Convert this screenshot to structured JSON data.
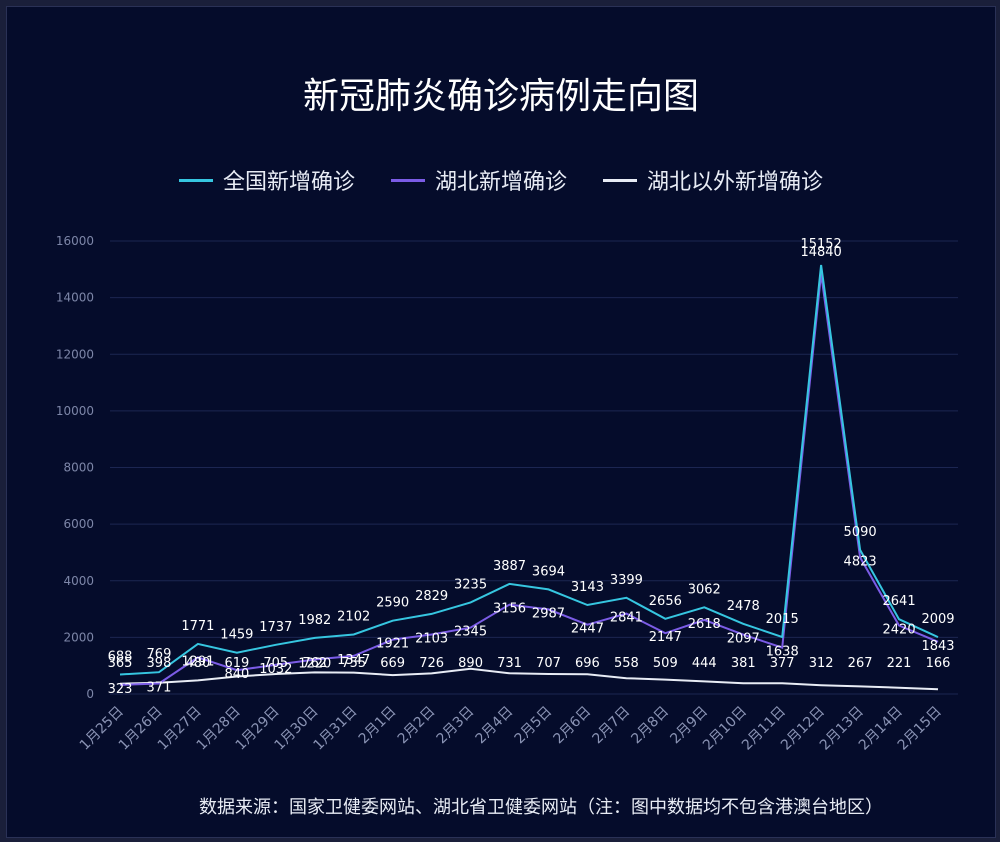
{
  "chart_data": {
    "type": "line",
    "title": "新冠肺炎确诊病例走向图",
    "categories": [
      "1月25日",
      "1月26日",
      "1月27日",
      "1月28日",
      "1月29日",
      "1月30日",
      "1月31日",
      "2月1日",
      "2月2日",
      "2月3日",
      "2月4日",
      "2月5日",
      "2月6日",
      "2月7日",
      "2月8日",
      "2月9日",
      "2月10日",
      "2月11日",
      "2月12日",
      "2月13日",
      "2月14日",
      "2月15日"
    ],
    "series": [
      {
        "name": "全国新增确诊",
        "color": "#36c6e0",
        "values": [
          688,
          769,
          1771,
          1459,
          1737,
          1982,
          2102,
          2590,
          2829,
          3235,
          3887,
          3694,
          3143,
          3399,
          2656,
          3062,
          2478,
          2015,
          15152,
          5090,
          2641,
          2009
        ]
      },
      {
        "name": "湖北新增确诊",
        "color": "#7b5ce6",
        "values": [
          323,
          371,
          1291,
          840,
          1032,
          1220,
          1347,
          1921,
          2103,
          2345,
          3156,
          2987,
          2447,
          2841,
          2147,
          2618,
          2097,
          1638,
          14840,
          4823,
          2420,
          1843
        ]
      },
      {
        "name": "湖北以外新增确诊",
        "color": "#e8ecf5",
        "values": [
          365,
          398,
          480,
          619,
          705,
          762,
          755,
          669,
          726,
          890,
          731,
          707,
          696,
          558,
          509,
          444,
          381,
          377,
          312,
          267,
          221,
          166
        ]
      }
    ],
    "ylim": [
      0,
      16000
    ],
    "yticks": [
      0,
      2000,
      4000,
      6000,
      8000,
      10000,
      12000,
      14000,
      16000
    ],
    "grid": true,
    "legend_position": "top"
  },
  "source_note": "数据来源：国家卫健委网站、湖北省卫健委网站（注：图中数据均不包含港澳台地区）"
}
